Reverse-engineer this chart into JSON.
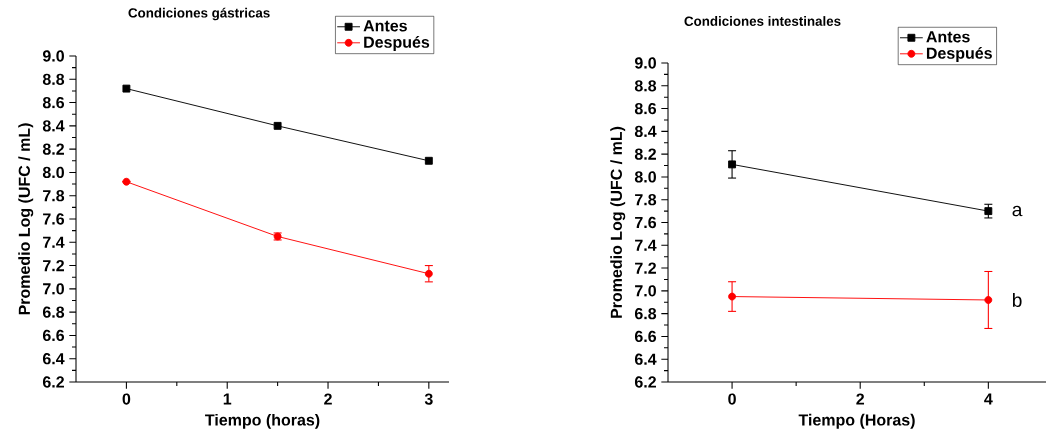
{
  "chart_data": [
    {
      "type": "line",
      "title": "Condiciones gástricas",
      "xlabel": "Tiempo (horas)",
      "ylabel": "Promedio Log (UFC / mL)",
      "x": [
        0,
        1.5,
        3
      ],
      "legend": "top right",
      "xlim": [
        -0.5,
        3.2
      ],
      "ylim": [
        6.2,
        9.0
      ],
      "xticks": [
        0,
        1,
        2,
        3
      ],
      "yticks": [
        6.2,
        6.4,
        6.6,
        6.8,
        {
          "value": 7,
          "label": "7.0"
        },
        7.2,
        7.4,
        7.6,
        7.8,
        {
          "value": 8,
          "label": "8.0"
        },
        8.2,
        8.4,
        8.6,
        8.8,
        {
          "value": 9,
          "label": "9.0"
        }
      ],
      "series": [
        {
          "name": "Antes",
          "color": "#000000",
          "marker": "square",
          "values": [
            8.72,
            8.4,
            8.1
          ]
        },
        {
          "name": "Después",
          "color": "#ff0000",
          "marker": "circle",
          "values": [
            7.92,
            7.45,
            7.13
          ],
          "errors": [
            null,
            0.03,
            0.07
          ]
        }
      ]
    },
    {
      "type": "line",
      "title": "Condiciones intestinales",
      "xlabel": "Tiempo (Horas)",
      "ylabel": "Promedio Log (UFC / mL)",
      "x": [
        0,
        4
      ],
      "legend": "top right",
      "xlim": [
        -1,
        4.9
      ],
      "ylim": [
        6.2,
        9.0
      ],
      "xticks": [
        0,
        2,
        4
      ],
      "yticks": [
        6.2,
        6.4,
        6.6,
        6.8,
        {
          "value": 7,
          "label": "7.0"
        },
        7.2,
        7.4,
        7.6,
        7.8,
        {
          "value": 8,
          "label": "8.0"
        },
        8.2,
        8.4,
        8.6,
        8.8,
        {
          "value": 9,
          "label": "9.0"
        }
      ],
      "series": [
        {
          "name": "Antes",
          "color": "#000000",
          "marker": "square",
          "values": [
            8.11,
            7.7
          ],
          "errors": [
            0.12,
            0.06
          ]
        },
        {
          "name": "Después",
          "color": "#ff0000",
          "marker": "circle",
          "values": [
            6.95,
            6.92
          ],
          "errors": [
            0.13,
            0.25
          ]
        }
      ],
      "annotations": [
        {
          "text": "a",
          "x": 4,
          "y": 7.7
        },
        {
          "text": "b",
          "x": 4,
          "y": 6.92
        }
      ]
    }
  ]
}
